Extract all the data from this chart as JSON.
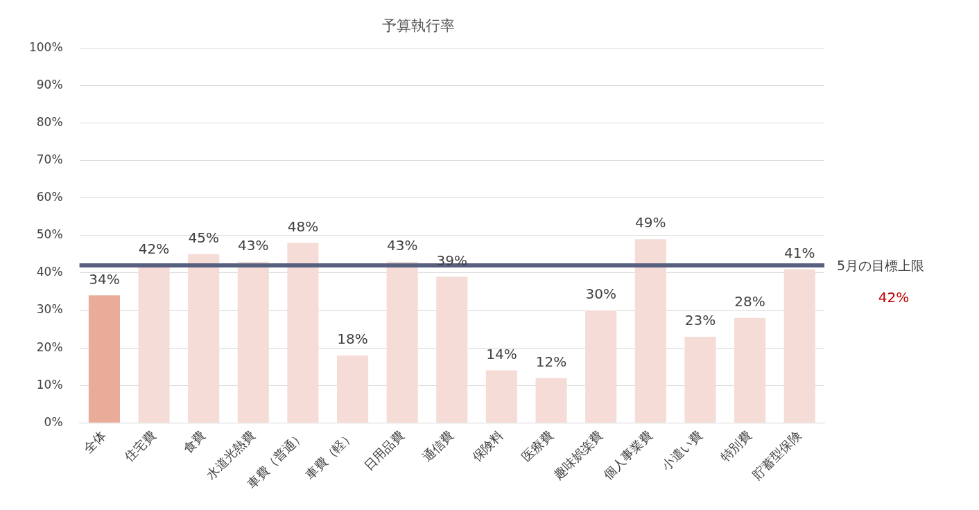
{
  "chart_data": {
    "type": "bar",
    "title": "予算執行率",
    "categories": [
      "全体",
      "住宅費",
      "食費",
      "水道光熱費",
      "車費（普通）",
      "車費（軽）",
      "日用品費",
      "通信費",
      "保険料",
      "医療費",
      "趣味娯楽費",
      "個人事業費",
      "小遣い費",
      "特別費",
      "貯蓄型保険"
    ],
    "values": [
      34,
      42,
      45,
      43,
      48,
      18,
      43,
      39,
      14,
      12,
      30,
      49,
      23,
      28,
      41
    ],
    "colors": [
      "#e9ac99",
      "#f5dcd7",
      "#f5dcd7",
      "#f5dcd7",
      "#f5dcd7",
      "#f5dcd7",
      "#f5dcd7",
      "#f5dcd7",
      "#f5dcd7",
      "#f5dcd7",
      "#f5dcd7",
      "#f5dcd7",
      "#f5dcd7",
      "#f5dcd7",
      "#f5dcd7"
    ],
    "value_labels": [
      "34%",
      "42%",
      "45%",
      "43%",
      "48%",
      "18%",
      "43%",
      "39%",
      "14%",
      "12%",
      "30%",
      "49%",
      "23%",
      "28%",
      "41%"
    ],
    "ylim": [
      0,
      100
    ],
    "yticks": [
      {
        "value": 0,
        "label": "0%"
      },
      {
        "value": 10,
        "label": "10%"
      },
      {
        "value": 20,
        "label": "20%"
      },
      {
        "value": 30,
        "label": "30%"
      },
      {
        "value": 40,
        "label": "40%"
      },
      {
        "value": 50,
        "label": "50%"
      },
      {
        "value": 60,
        "label": "60%"
      },
      {
        "value": 70,
        "label": "70%"
      },
      {
        "value": 80,
        "label": "80%"
      },
      {
        "value": 90,
        "label": "90%"
      },
      {
        "value": 100,
        "label": "100%"
      }
    ],
    "grid": "y",
    "ref_lines": [
      {
        "axis": "y",
        "value": 42,
        "label": "5月の目標上限",
        "color": "#586080"
      }
    ],
    "annotations": [
      "42%"
    ]
  }
}
